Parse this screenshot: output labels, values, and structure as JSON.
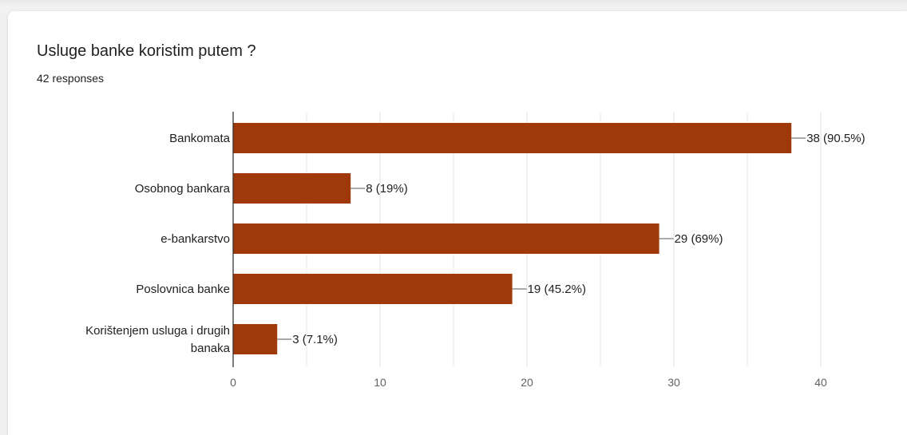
{
  "question": {
    "title": "Usluge banke koristim putem ?",
    "responses": "42 responses"
  },
  "colors": {
    "bar": "#a0390a",
    "grid": "#e6e6e6",
    "axis": "#333333",
    "text": "#202124",
    "tick": "#5f6368"
  },
  "chart_data": {
    "type": "bar",
    "orientation": "horizontal",
    "categories": [
      [
        "Bankomata"
      ],
      [
        "Osobnog bankara"
      ],
      [
        "e-bankarstvo"
      ],
      [
        "Poslovnica banke"
      ],
      [
        "Korištenjem usluga i drugih",
        "banaka"
      ]
    ],
    "values": [
      38,
      8,
      29,
      19,
      3
    ],
    "labels": [
      "38 (90.5%)",
      "8 (19%)",
      "29 (69%)",
      "19 (45.2%)",
      "3 (7.1%)"
    ],
    "xlim": [
      0,
      40
    ],
    "xticks": [
      "0",
      "10",
      "20",
      "30",
      "40"
    ],
    "xtick_values": [
      0,
      10,
      20,
      30,
      40
    ],
    "grid": true,
    "legend": "none"
  }
}
